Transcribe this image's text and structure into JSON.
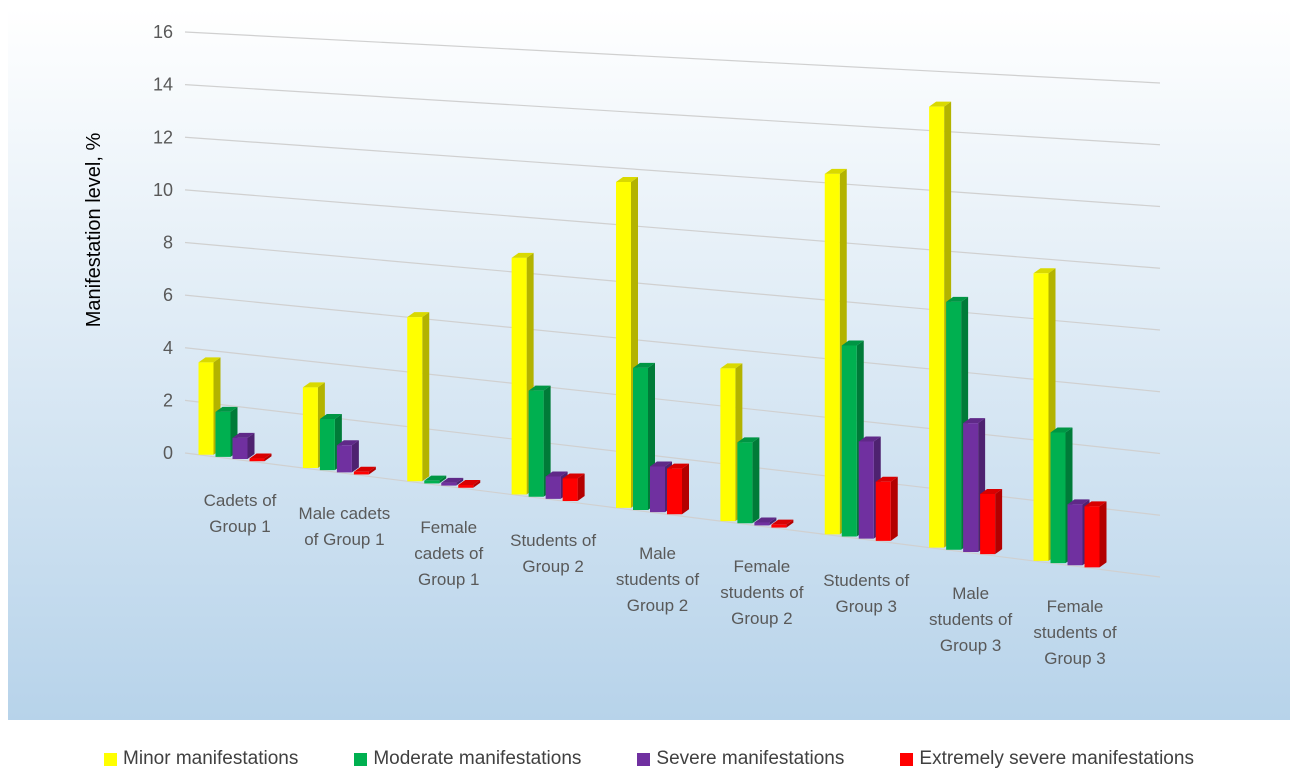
{
  "chart_data": {
    "type": "bar3d",
    "y_label": "Manifestation level, %",
    "categories": [
      "Cadets of Group 1",
      "Male cadets of Group 1",
      "Female cadets of Group 1",
      "Students of Group 2",
      "Male students of Group 2",
      "Female students of Group 2",
      "Students of Group 3",
      "Male students of Group 3",
      "Female students of Group 3"
    ],
    "series": [
      {
        "name": "Minor manifestations",
        "color": "#ffff00",
        "values": [
          3.5,
          3.0,
          6.0,
          8.5,
          11.5,
          5.3,
          12.3,
          14.8,
          9.5
        ]
      },
      {
        "name": "Moderate manifestations",
        "color": "#00b050",
        "values": [
          1.7,
          1.9,
          0.1,
          3.8,
          5.0,
          2.8,
          6.5,
          8.3,
          4.3
        ]
      },
      {
        "name": "Severe manifestations",
        "color": "#7030a0",
        "values": [
          0.8,
          1.0,
          0.1,
          0.8,
          1.6,
          0.1,
          3.3,
          4.3,
          2.0
        ]
      },
      {
        "name": "Extremely severe manifestations",
        "color": "#ff0000",
        "values": [
          0.1,
          0.1,
          0.1,
          0.8,
          1.6,
          0.1,
          2.0,
          2.0,
          2.0
        ]
      }
    ],
    "ylim": [
      0,
      16
    ],
    "yticks": [
      0,
      2,
      4,
      6,
      8,
      10,
      12,
      14,
      16
    ],
    "grid": true
  }
}
